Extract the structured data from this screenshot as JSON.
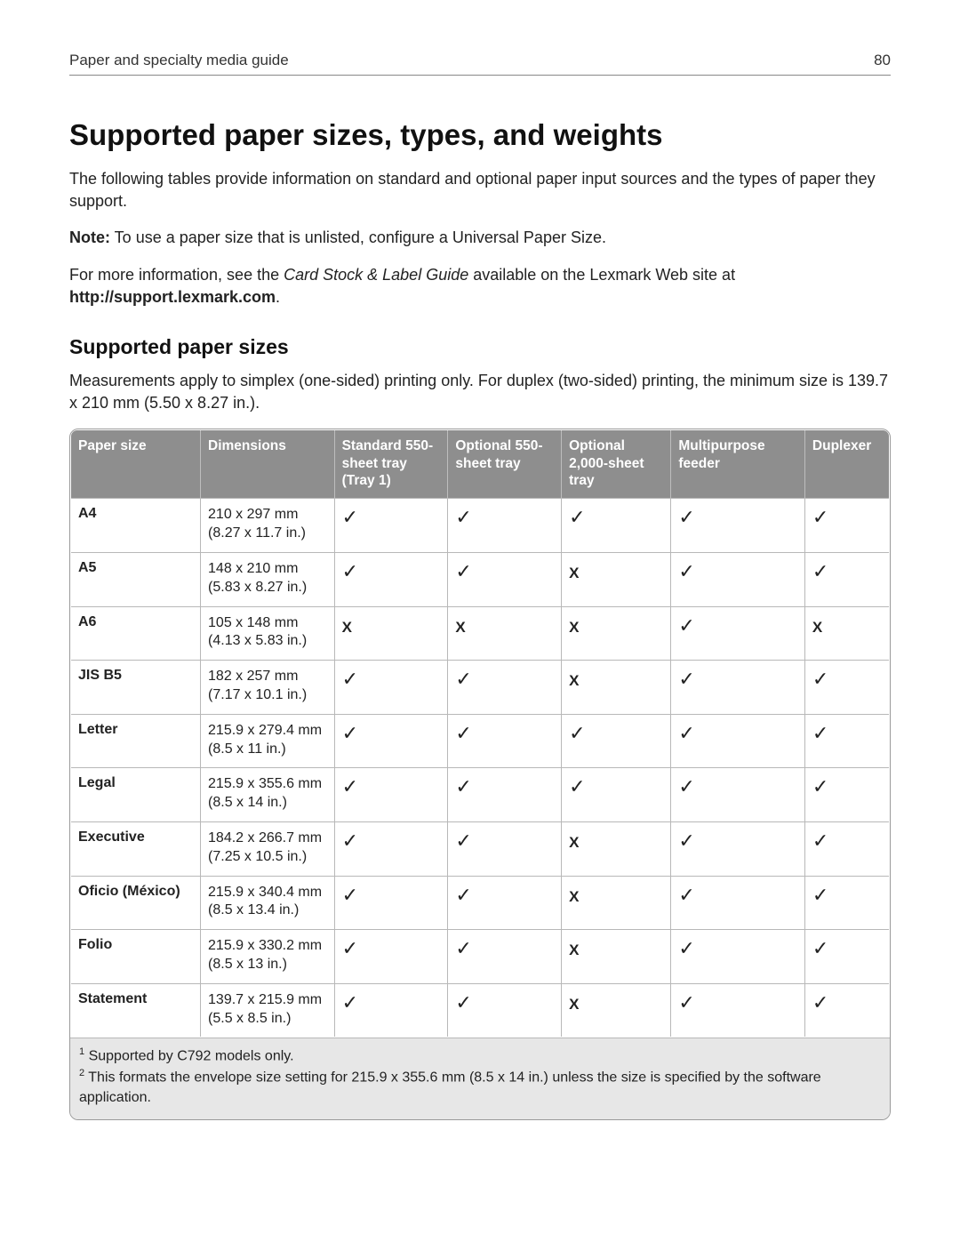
{
  "header": {
    "section": "Paper and specialty media guide",
    "page_number": "80"
  },
  "title": "Supported paper sizes, types, and weights",
  "intro": "The following tables provide information on standard and optional paper input sources and the types of paper they support.",
  "note_label": "Note:",
  "note_text": " To use a paper size that is unlisted, configure a Universal Paper Size.",
  "more_info_prefix": "For more information, see the ",
  "more_info_doc": "Card Stock & Label Guide",
  "more_info_suffix": " available on the Lexmark Web site at ",
  "more_info_url": "http://support.lexmark.com",
  "more_info_period": ".",
  "section_heading": "Supported paper sizes",
  "section_intro": "Measurements apply to simplex (one-sided) printing only. For duplex (two-sided) printing, the minimum size is 139.7 x 210 mm (5.50 x 8.27 in.).",
  "table": {
    "columns": [
      "Paper size",
      "Dimensions",
      "Standard 550-sheet tray (Tray 1)",
      "Optional 550-sheet tray",
      "Optional 2,000-sheet tray",
      "Multipurpose feeder",
      "Duplexer"
    ],
    "rows": [
      {
        "name": "A4",
        "dim_mm": "210 x 297 mm",
        "dim_in": "(8.27 x 11.7 in.)",
        "c": [
          "y",
          "y",
          "y",
          "y",
          "y"
        ]
      },
      {
        "name": "A5",
        "dim_mm": "148 x 210 mm",
        "dim_in": "(5.83 x 8.27 in.)",
        "c": [
          "y",
          "y",
          "x",
          "y",
          "y"
        ]
      },
      {
        "name": "A6",
        "dim_mm": "105 x 148 mm",
        "dim_in": "(4.13 x 5.83 in.)",
        "c": [
          "x",
          "x",
          "x",
          "y",
          "x"
        ]
      },
      {
        "name": "JIS B5",
        "dim_mm": "182 x 257 mm",
        "dim_in": "(7.17 x 10.1 in.)",
        "c": [
          "y",
          "y",
          "x",
          "y",
          "y"
        ]
      },
      {
        "name": "Letter",
        "dim_mm": "215.9 x 279.4 mm",
        "dim_in": "(8.5 x 11 in.)",
        "c": [
          "y",
          "y",
          "y",
          "y",
          "y"
        ]
      },
      {
        "name": "Legal",
        "dim_mm": "215.9 x 355.6 mm",
        "dim_in": "(8.5 x 14 in.)",
        "c": [
          "y",
          "y",
          "y",
          "y",
          "y"
        ]
      },
      {
        "name": "Executive",
        "dim_mm": "184.2 x 266.7 mm",
        "dim_in": "(7.25 x 10.5 in.)",
        "c": [
          "y",
          "y",
          "x",
          "y",
          "y"
        ]
      },
      {
        "name": "Oficio (México)",
        "dim_mm": "215.9 x 340.4 mm",
        "dim_in": "(8.5 x 13.4 in.)",
        "c": [
          "y",
          "y",
          "x",
          "y",
          "y"
        ]
      },
      {
        "name": "Folio",
        "dim_mm": "215.9 x 330.2 mm",
        "dim_in": "(8.5 x 13 in.)",
        "c": [
          "y",
          "y",
          "x",
          "y",
          "y"
        ]
      },
      {
        "name": "Statement",
        "dim_mm": "139.7 x 215.9 mm",
        "dim_in": "(5.5 x 8.5 in.)",
        "c": [
          "y",
          "y",
          "x",
          "y",
          "y"
        ]
      }
    ],
    "marks": {
      "y": "✓",
      "x": "X"
    }
  },
  "footnotes": {
    "fn1": " Supported by C792 models only.",
    "fn2": " This formats the envelope size setting for 215.9 x 355.6 mm (8.5 x 14 in.) unless the size is specified by the software application."
  },
  "colors": {
    "header_bg": "#8e8e8e",
    "header_text": "#ffffff",
    "border": "#9a9a9a",
    "footnote_bg": "#e7e7e7"
  }
}
